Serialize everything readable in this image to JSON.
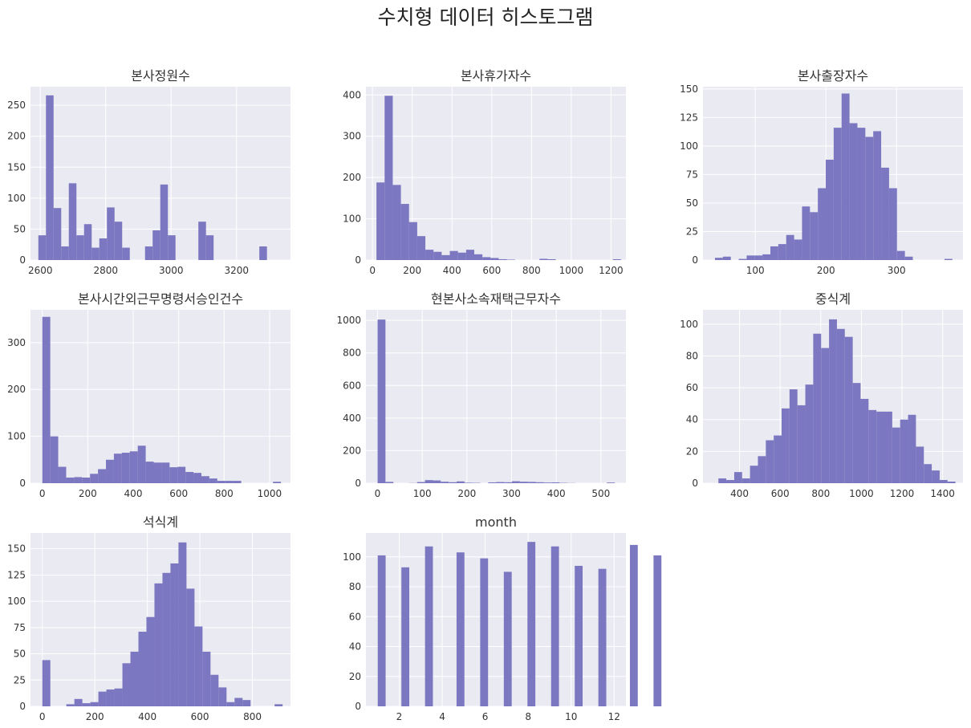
{
  "figure": {
    "title": "수치형 데이터 히스토그램",
    "bar_color": "#7b77c0",
    "plot_bg": "#eaeaf2",
    "grid_color": "#ffffff"
  },
  "chart_data": [
    {
      "type": "bar",
      "title": "본사정원수",
      "xlim": [
        2570,
        3365
      ],
      "ylim": [
        0,
        280
      ],
      "xticks": [
        2600,
        2800,
        3000,
        3200
      ],
      "yticks": [
        0,
        50,
        100,
        150,
        200,
        250
      ],
      "bin_start": 2594,
      "bin_width": 23.3,
      "values": [
        40,
        266,
        84,
        22,
        124,
        40,
        58,
        20,
        35,
        85,
        62,
        20,
        0,
        0,
        22,
        48,
        122,
        40,
        0,
        0,
        0,
        62,
        40,
        0,
        0,
        0,
        0,
        0,
        0,
        22
      ]
    },
    {
      "type": "bar",
      "title": "본사휴가자수",
      "xlim": [
        -33,
        1275
      ],
      "ylim": [
        0,
        420
      ],
      "xticks": [
        0,
        200,
        400,
        600,
        800,
        1000,
        1200
      ],
      "yticks": [
        0,
        100,
        200,
        300,
        400
      ],
      "bin_start": 20,
      "bin_width": 41,
      "values": [
        188,
        398,
        182,
        136,
        92,
        58,
        25,
        20,
        12,
        22,
        18,
        25,
        14,
        7,
        5,
        2,
        1,
        0,
        0,
        0,
        3,
        2,
        0,
        0,
        0,
        0,
        0,
        0,
        0,
        2
      ]
    },
    {
      "type": "bar",
      "title": "본사출장자수",
      "xlim": [
        26,
        394
      ],
      "ylim": [
        0,
        152
      ],
      "xticks": [
        100,
        200,
        300
      ],
      "yticks": [
        0,
        25,
        50,
        75,
        100,
        125,
        150
      ],
      "bin_start": 43,
      "bin_width": 11.2,
      "values": [
        2,
        3,
        0,
        1,
        4,
        4,
        5,
        12,
        14,
        22,
        18,
        47,
        42,
        63,
        88,
        116,
        146,
        120,
        116,
        108,
        113,
        81,
        63,
        8,
        3,
        0,
        0,
        0,
        0,
        1
      ]
    },
    {
      "type": "bar",
      "title": "본사시간외근무명령서승인건수",
      "xlim": [
        -52,
        1092
      ],
      "ylim": [
        0,
        370
      ],
      "xticks": [
        0,
        200,
        400,
        600,
        800,
        1000
      ],
      "yticks": [
        0,
        100,
        200,
        300
      ],
      "bin_start": 0,
      "bin_width": 35,
      "values": [
        355,
        100,
        35,
        12,
        13,
        12,
        20,
        30,
        50,
        63,
        65,
        68,
        80,
        46,
        44,
        44,
        34,
        35,
        24,
        22,
        15,
        10,
        5,
        5,
        5,
        0,
        0,
        0,
        0,
        3
      ]
    },
    {
      "type": "bar",
      "title": "현본사소속재택근무자수",
      "xlim": [
        -26,
        556
      ],
      "ylim": [
        0,
        1065
      ],
      "xticks": [
        0,
        100,
        200,
        300,
        400,
        500
      ],
      "yticks": [
        0,
        200,
        400,
        600,
        800,
        1000
      ],
      "bin_start": 0,
      "bin_width": 17.7,
      "values": [
        1005,
        8,
        0,
        0,
        1,
        7,
        19,
        17,
        9,
        6,
        11,
        3,
        2,
        0,
        5,
        7,
        6,
        12,
        9,
        8,
        6,
        4,
        5,
        2,
        1,
        0,
        0,
        0,
        0,
        4
      ]
    },
    {
      "type": "bar",
      "title": "중식계",
      "xlim": [
        220,
        1500
      ],
      "ylim": [
        0,
        109
      ],
      "xticks": [
        400,
        600,
        800,
        1000,
        1200,
        1400
      ],
      "yticks": [
        0,
        20,
        40,
        60,
        80,
        100
      ],
      "bin_start": 296,
      "bin_width": 38.9,
      "values": [
        3,
        2,
        7,
        3,
        11,
        17,
        27,
        30,
        47,
        59,
        49,
        62,
        94,
        85,
        103,
        97,
        92,
        63,
        53,
        46,
        45,
        45,
        35,
        40,
        43,
        23,
        12,
        8,
        2,
        1
      ]
    },
    {
      "type": "bar",
      "title": "석식계",
      "xlim": [
        -45,
        945
      ],
      "ylim": [
        0,
        165
      ],
      "xticks": [
        0,
        200,
        400,
        600,
        800
      ],
      "yticks": [
        0,
        25,
        50,
        75,
        100,
        125,
        150
      ],
      "bin_start": 0,
      "bin_width": 30.5,
      "values": [
        44,
        0,
        0,
        2,
        7,
        3,
        4,
        14,
        16,
        17,
        41,
        52,
        71,
        85,
        117,
        127,
        136,
        156,
        112,
        76,
        52,
        30,
        18,
        4,
        8,
        6,
        0,
        0,
        0,
        2
      ]
    },
    {
      "type": "bar",
      "title": "month",
      "xlim": [
        0.45,
        12.55
      ],
      "ylim": [
        0,
        116
      ],
      "xticks": [
        2,
        4,
        6,
        8,
        10,
        12
      ],
      "yticks": [
        0,
        20,
        40,
        60,
        80,
        100
      ],
      "bin_start": 1,
      "bin_width": 0.3667,
      "values": [
        101,
        0,
        0,
        93,
        0,
        0,
        107,
        0,
        0,
        0,
        103,
        0,
        0,
        99,
        0,
        0,
        90,
        0,
        0,
        110,
        0,
        0,
        107,
        0,
        0,
        94,
        0,
        0,
        92,
        0,
        0,
        0,
        108,
        0,
        0,
        101
      ]
    }
  ]
}
